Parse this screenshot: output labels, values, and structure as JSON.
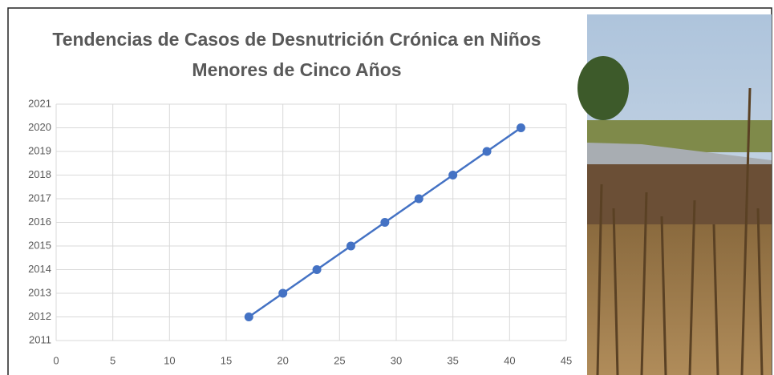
{
  "chart_data": {
    "type": "line",
    "title": "Tendencias de Casos de Desnutrición Crónica en Niños Menores de Cinco Años",
    "x": [
      17,
      20,
      23,
      26,
      29,
      32,
      35,
      38,
      41
    ],
    "values": [
      2012,
      2013,
      2014,
      2015,
      2016,
      2017,
      2018,
      2019,
      2020
    ],
    "color": "#4472c4",
    "xlim": [
      0,
      45
    ],
    "xticks": [
      0,
      5,
      10,
      15,
      20,
      25,
      30,
      35,
      40,
      45
    ],
    "ylim": [
      2011,
      2021
    ],
    "yticks": [
      2011,
      2012,
      2013,
      2014,
      2015,
      2016,
      2017,
      2018,
      2019,
      2020,
      2021
    ],
    "grid": true
  }
}
